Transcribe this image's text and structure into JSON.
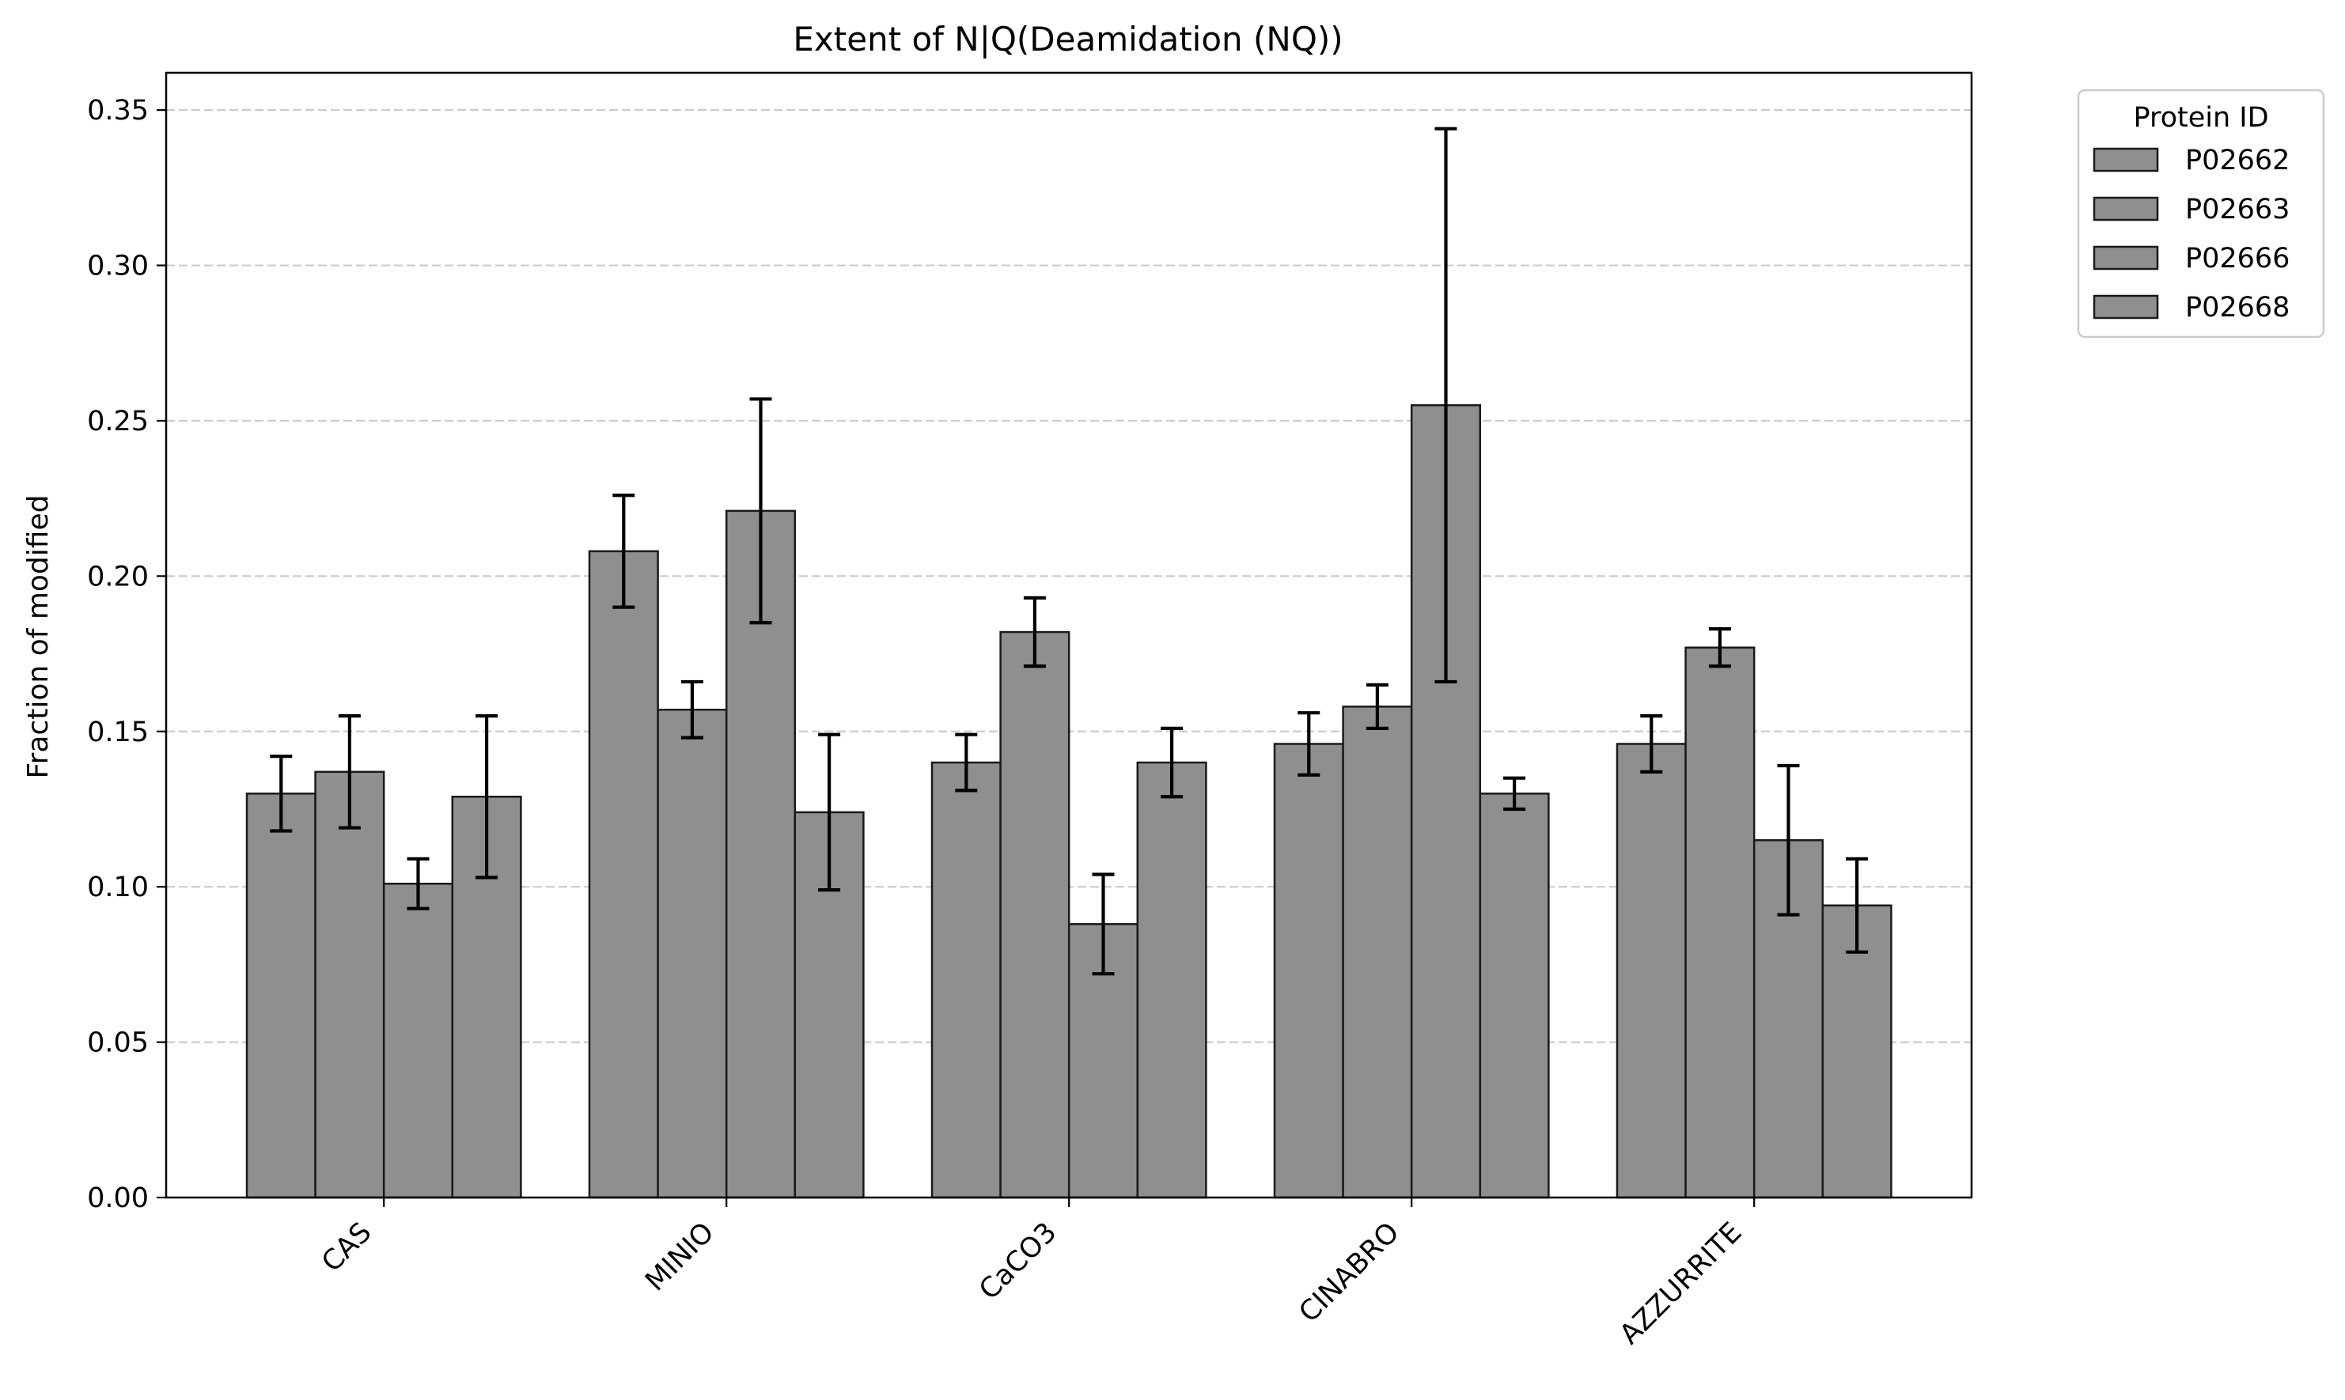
{
  "chart_data": {
    "type": "bar",
    "title": "Extent of N|Q(Deamidation (NQ))",
    "xlabel": "",
    "ylabel": "Fraction of modified",
    "ylim": [
      0,
      0.362
    ],
    "yticks": [
      "0.00",
      "0.05",
      "0.10",
      "0.15",
      "0.20",
      "0.25",
      "0.30",
      "0.35"
    ],
    "grid": "y-dashed",
    "legend_title": "Protein ID",
    "legend_position": "outside-top-right",
    "bar_color": "#8f8f8f",
    "edge_color": "#1a1a1a",
    "categories": [
      "CAS",
      "MINIO",
      "CaCO3",
      "CINABRO",
      "AZZURRITE"
    ],
    "series": [
      {
        "name": "P02662",
        "values": [
          0.13,
          0.208,
          0.14,
          0.146,
          0.146
        ],
        "errors": [
          0.012,
          0.018,
          0.009,
          0.01,
          0.009
        ]
      },
      {
        "name": "P02663",
        "values": [
          0.137,
          0.157,
          0.182,
          0.158,
          0.177
        ],
        "errors": [
          0.018,
          0.009,
          0.011,
          0.007,
          0.006
        ]
      },
      {
        "name": "P02666",
        "values": [
          0.101,
          0.221,
          0.088,
          0.255,
          0.115
        ],
        "errors": [
          0.008,
          0.036,
          0.016,
          0.089,
          0.024
        ]
      },
      {
        "name": "P02668",
        "values": [
          0.129,
          0.124,
          0.14,
          0.13,
          0.094
        ],
        "errors": [
          0.026,
          0.025,
          0.011,
          0.005,
          0.015
        ]
      }
    ]
  }
}
